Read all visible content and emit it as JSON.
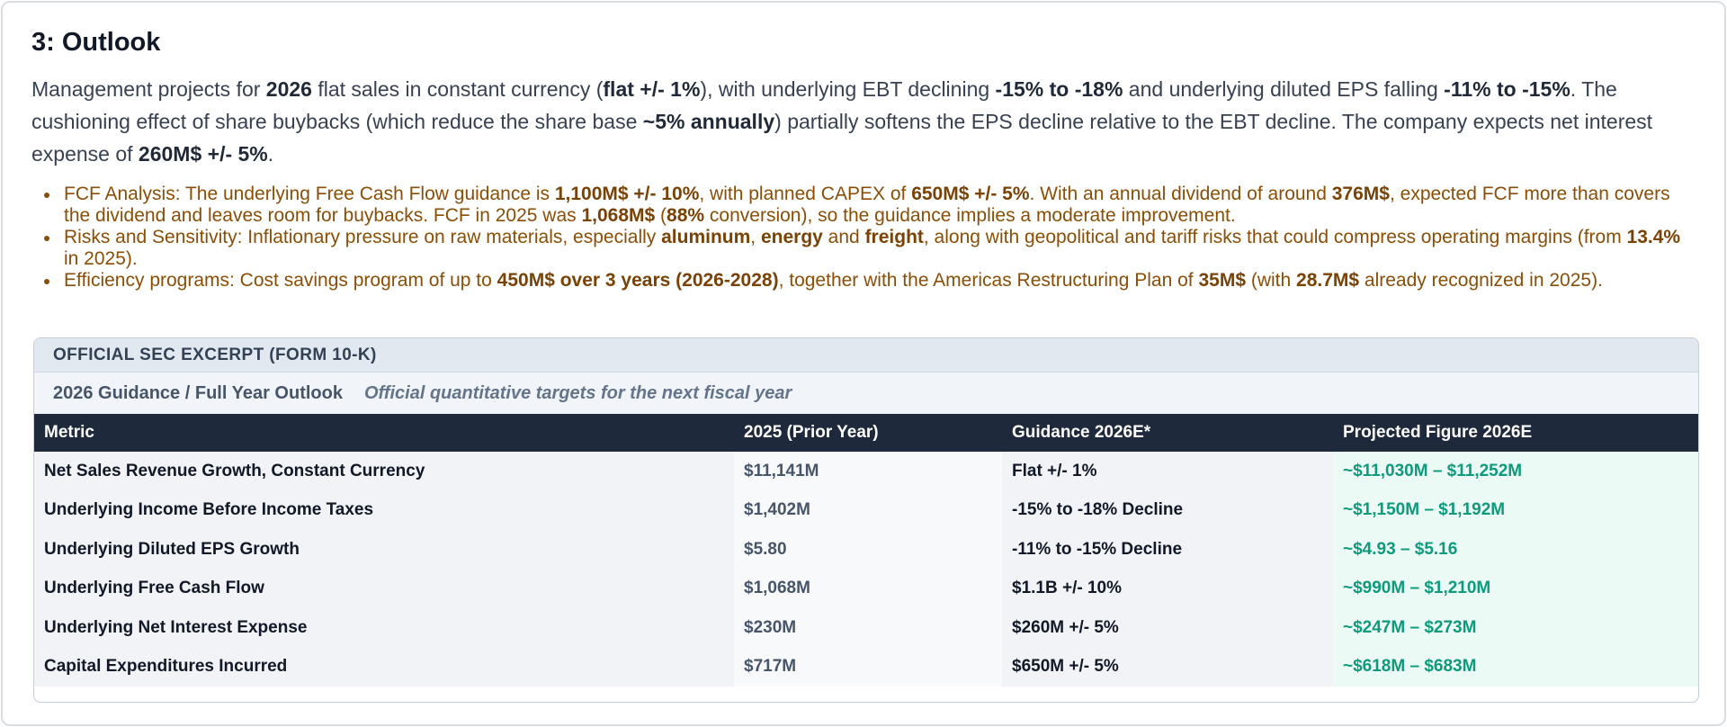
{
  "section_title": "3: Outlook",
  "lead": {
    "p1": "Management projects for ",
    "b1": "2026",
    "p2": " flat sales in constant currency (",
    "b2": "flat +/- 1%",
    "p3": "), with underlying EBT declining ",
    "b3": "-15% to -18%",
    "p4": " and underlying diluted EPS falling ",
    "b4": "-11% to -15%",
    "p5": ". The cushioning effect of share buybacks (which reduce the share base ",
    "b5": "~5% annually",
    "p6": ") partially softens the EPS decline relative to the EBT decline. The company expects net interest expense of ",
    "b6": "260M$ +/- 5%",
    "p7": "."
  },
  "bullets": [
    {
      "parts": [
        {
          "t": "FCF Analysis: The underlying Free Cash Flow guidance is "
        },
        {
          "b": "1,100M$ +/- 10%"
        },
        {
          "t": ", with planned CAPEX of "
        },
        {
          "b": "650M$ +/- 5%"
        },
        {
          "t": ". With an annual dividend of around "
        },
        {
          "b": "376M$"
        },
        {
          "t": ", expected FCF more than covers the dividend and leaves room for buybacks. FCF in 2025 was "
        },
        {
          "b": "1,068M$"
        },
        {
          "t": " ("
        },
        {
          "b": "88%"
        },
        {
          "t": " conversion), so the guidance implies a moderate improvement."
        }
      ]
    },
    {
      "parts": [
        {
          "t": "Risks and Sensitivity: Inflationary pressure on raw materials, especially "
        },
        {
          "b": "aluminum"
        },
        {
          "t": ", "
        },
        {
          "b": "energy"
        },
        {
          "t": " and "
        },
        {
          "b": "freight"
        },
        {
          "t": ", along with geopolitical and tariff risks that could compress operating margins (from "
        },
        {
          "b": "13.4%"
        },
        {
          "t": " in 2025)."
        }
      ]
    },
    {
      "parts": [
        {
          "t": "Efficiency programs: Cost savings program of up to "
        },
        {
          "b": "450M$ over 3 years (2026-2028)"
        },
        {
          "t": ", together with the Americas Restructuring Plan of "
        },
        {
          "b": "35M$"
        },
        {
          "t": " (with "
        },
        {
          "b": "28.7M$"
        },
        {
          "t": " already recognized in 2025)."
        }
      ]
    }
  ],
  "sec": {
    "header": "OFFICIAL SEC EXCERPT (FORM 10-K)",
    "subtitle": "2026 Guidance / Full Year Outlook",
    "subtitle_note": "Official quantitative targets for the next fiscal year",
    "columns": [
      "Metric",
      "2025 (Prior Year)",
      "Guidance 2026E*",
      "Projected Figure 2026E"
    ],
    "rows": [
      [
        "Net Sales Revenue Growth, Constant Currency",
        "$11,141M",
        "Flat +/- 1%",
        "~$11,030M – $11,252M"
      ],
      [
        "Underlying Income Before Income Taxes",
        "$1,402M",
        "-15% to -18% Decline",
        "~$1,150M – $1,192M"
      ],
      [
        "Underlying Diluted EPS Growth",
        "$5.80",
        "-11% to -15% Decline",
        "~$4.93 – $5.16"
      ],
      [
        "Underlying Free Cash Flow",
        "$1,068M",
        "$1.1B +/- 10%",
        "~$990M – $1,210M"
      ],
      [
        "Underlying Net Interest Expense",
        "$230M",
        "$260M +/- 5%",
        "~$247M – $273M"
      ],
      [
        "Capital Expenditures Incurred",
        "$717M",
        "$650M +/- 5%",
        "~$618M – $683M"
      ]
    ]
  },
  "colors": {
    "bullet_text": "#8a4e06",
    "table_header_bg": "#1e293b",
    "projected_text": "#0f9a7b",
    "projected_bg": "#ebfaf5"
  }
}
